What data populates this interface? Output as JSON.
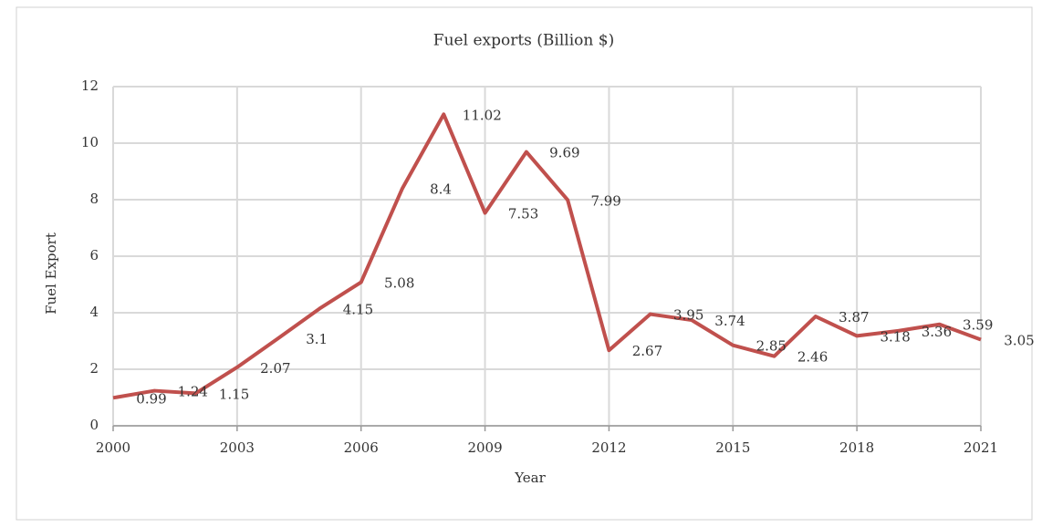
{
  "chart_data": {
    "type": "line",
    "title": "Fuel exports (Billion $)",
    "x_label": "Year",
    "y_label": "Fuel Export",
    "x": [
      2000,
      2001,
      2002,
      2003,
      2004,
      2005,
      2006,
      2007,
      2008,
      2009,
      2010,
      2011,
      2012,
      2013,
      2014,
      2015,
      2016,
      2017,
      2018,
      2019,
      2020,
      2021
    ],
    "series": [
      {
        "name": "Fuel exports",
        "color": "#c0504d",
        "values": [
          0.99,
          1.24,
          1.15,
          2.07,
          3.1,
          4.15,
          5.08,
          8.4,
          11.02,
          7.53,
          9.69,
          7.99,
          2.67,
          3.95,
          3.74,
          2.85,
          2.46,
          3.87,
          3.18,
          3.36,
          3.59,
          3.05
        ]
      }
    ],
    "xlim": [
      2000,
      2021
    ],
    "xticks": [
      2000,
      2003,
      2006,
      2009,
      2012,
      2015,
      2018,
      2021
    ],
    "ylim": [
      0,
      12
    ],
    "yticks": [
      0,
      2,
      4,
      6,
      8,
      10,
      12
    ],
    "grid": true
  }
}
